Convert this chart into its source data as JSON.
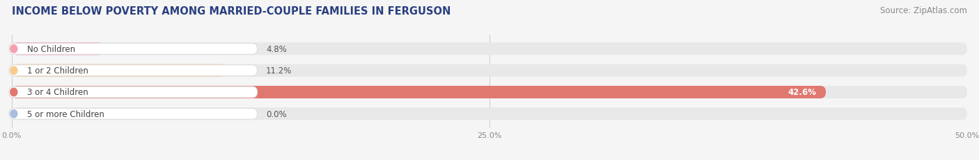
{
  "title": "INCOME BELOW POVERTY AMONG MARRIED-COUPLE FAMILIES IN FERGUSON",
  "source": "Source: ZipAtlas.com",
  "categories": [
    "No Children",
    "1 or 2 Children",
    "3 or 4 Children",
    "5 or more Children"
  ],
  "values": [
    4.8,
    11.2,
    42.6,
    0.0
  ],
  "bar_colors": [
    "#f5a0b0",
    "#f7ca8e",
    "#e07870",
    "#aabedd"
  ],
  "value_labels": [
    "4.8%",
    "11.2%",
    "42.6%",
    "0.0%"
  ],
  "value_inside": [
    false,
    false,
    true,
    false
  ],
  "xlim_max": 50,
  "xticks": [
    0,
    25,
    50
  ],
  "xticklabels": [
    "0.0%",
    "25.0%",
    "50.0%"
  ],
  "background_color": "#f5f5f5",
  "bar_bg_color": "#e8e8e8",
  "title_color": "#2a4080",
  "title_fontsize": 10.5,
  "source_fontsize": 8.5,
  "label_fontsize": 8.5,
  "value_fontsize": 8.5
}
